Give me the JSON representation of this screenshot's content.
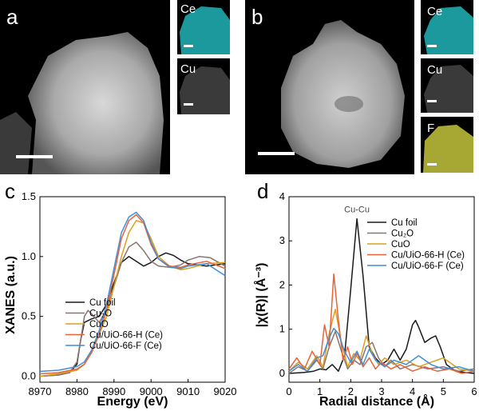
{
  "panels": {
    "a": {
      "letter": "a",
      "maps": [
        "Ce",
        "Cu"
      ]
    },
    "b": {
      "letter": "b",
      "maps": [
        "Ce",
        "Cu",
        "F"
      ]
    },
    "c": {
      "letter": "c"
    },
    "d": {
      "letter": "d"
    }
  },
  "colors": {
    "cu_foil": "#1a1a1a",
    "cu2o": "#8a7470",
    "cuo": "#d9a020",
    "uio_h": "#e8623a",
    "uio_f": "#3f8fd8",
    "ce_map": "#21b4b8",
    "f_map": "#c4c43c"
  },
  "chart_data": [
    {
      "type": "line",
      "panel": "c",
      "xlabel": "Energy (eV)",
      "ylabel": "XANES (a.u.)",
      "xlim": [
        8970,
        9020
      ],
      "ylim": [
        -0.05,
        1.5
      ],
      "xticks": [
        "8970",
        "8980",
        "8990",
        "9000",
        "9010",
        "9020"
      ],
      "yticks": [
        "0.0",
        "0.5",
        "1.0",
        "1.5"
      ],
      "legend": [
        "Cu foil",
        "Cu₂O",
        "CuO",
        "Cu/UiO-66-H (Ce)",
        "Cu/UiO-66-F (Ce)"
      ],
      "series": [
        {
          "name": "Cu foil",
          "color": "#1a1a1a",
          "x": [
            8970,
            8975,
            8978,
            8980,
            8981,
            8982,
            8984,
            8986,
            8988,
            8990,
            8992,
            8994,
            8996,
            8998,
            9000,
            9002,
            9004,
            9006,
            9008,
            9010,
            9015,
            9020
          ],
          "y": [
            0.0,
            0.01,
            0.03,
            0.1,
            0.3,
            0.45,
            0.48,
            0.5,
            0.6,
            0.78,
            0.95,
            1.0,
            0.96,
            0.92,
            0.95,
            1.0,
            1.03,
            1.01,
            0.97,
            0.94,
            0.92,
            0.94
          ]
        },
        {
          "name": "Cu₂O",
          "color": "#8a7470",
          "x": [
            8970,
            8975,
            8978,
            8980,
            8981,
            8982,
            8983,
            8984,
            8986,
            8988,
            8990,
            8992,
            8994,
            8996,
            8998,
            9000,
            9002,
            9005,
            9008,
            9010,
            9013,
            9016,
            9020
          ],
          "y": [
            0.0,
            0.01,
            0.03,
            0.12,
            0.3,
            0.5,
            0.55,
            0.52,
            0.45,
            0.55,
            0.75,
            0.95,
            1.08,
            1.12,
            1.05,
            0.96,
            0.92,
            0.91,
            0.93,
            0.97,
            1.0,
            0.99,
            0.92
          ]
        },
        {
          "name": "CuO",
          "color": "#d9a020",
          "x": [
            8970,
            8975,
            8980,
            8982,
            8984,
            8985,
            8986,
            8988,
            8990,
            8992,
            8994,
            8996,
            8998,
            9000,
            9002,
            9005,
            9008,
            9010,
            9015,
            9020
          ],
          "y": [
            0.0,
            0.02,
            0.05,
            0.1,
            0.22,
            0.3,
            0.35,
            0.5,
            0.75,
            1.0,
            1.2,
            1.3,
            1.28,
            1.15,
            1.0,
            0.92,
            0.89,
            0.9,
            0.94,
            0.95
          ]
        },
        {
          "name": "Cu/UiO-66-H (Ce)",
          "color": "#e8623a",
          "x": [
            8970,
            8975,
            8980,
            8982,
            8984,
            8986,
            8988,
            8990,
            8992,
            8994,
            8996,
            8998,
            9000,
            9002,
            9005,
            9008,
            9010,
            9015,
            9020
          ],
          "y": [
            0.02,
            0.03,
            0.06,
            0.1,
            0.2,
            0.35,
            0.55,
            0.85,
            1.15,
            1.3,
            1.35,
            1.28,
            1.1,
            0.98,
            0.92,
            0.91,
            0.93,
            0.96,
            0.9
          ]
        },
        {
          "name": "Cu/UiO-66-F (Ce)",
          "color": "#3f8fd8",
          "x": [
            8970,
            8975,
            8980,
            8982,
            8984,
            8986,
            8988,
            8990,
            8992,
            8994,
            8996,
            8998,
            9000,
            9002,
            9005,
            9008,
            9010,
            9015,
            9020
          ],
          "y": [
            0.04,
            0.05,
            0.08,
            0.12,
            0.22,
            0.38,
            0.6,
            0.9,
            1.2,
            1.33,
            1.37,
            1.3,
            1.12,
            0.98,
            0.91,
            0.9,
            0.92,
            0.94,
            0.84
          ]
        }
      ]
    },
    {
      "type": "line",
      "panel": "d",
      "xlabel": "Radial distance (Å)",
      "ylabel": "|χ(R)| (Å⁻³)",
      "xlim": [
        0,
        6
      ],
      "ylim": [
        -0.2,
        4
      ],
      "xticks": [
        "0",
        "1",
        "2",
        "3",
        "4",
        "5",
        "6"
      ],
      "yticks": [
        "0",
        "1",
        "2",
        "3",
        "4"
      ],
      "annotation": "Cu-Cu",
      "legend": [
        "Cu foil",
        "Cu₂O",
        "CuO",
        "Cu/UiO-66-H (Ce)",
        "Cu/UiO-66-F (Ce)"
      ],
      "series": [
        {
          "name": "Cu foil",
          "color": "#1a1a1a",
          "x": [
            0,
            0.5,
            0.8,
            1.0,
            1.2,
            1.4,
            1.6,
            1.8,
            2.0,
            2.2,
            2.4,
            2.6,
            2.8,
            3.0,
            3.2,
            3.4,
            3.6,
            3.8,
            4.0,
            4.1,
            4.2,
            4.4,
            4.6,
            4.75,
            4.9,
            5.1,
            5.4,
            5.7,
            6.0
          ],
          "y": [
            0.0,
            0.02,
            0.05,
            0.1,
            0.08,
            0.2,
            0.05,
            0.4,
            1.9,
            3.5,
            2.2,
            0.6,
            0.35,
            0.2,
            0.3,
            0.55,
            0.3,
            0.55,
            1.1,
            1.2,
            1.05,
            0.7,
            0.8,
            0.85,
            0.6,
            0.2,
            0.05,
            0.02,
            0.0
          ]
        },
        {
          "name": "Cu₂O",
          "color": "#8a7470",
          "x": [
            0,
            0.3,
            0.6,
            0.9,
            1.1,
            1.3,
            1.5,
            1.7,
            1.9,
            2.1,
            2.3,
            2.5,
            2.7,
            2.9,
            3.1,
            3.3,
            3.6,
            4.0,
            4.5,
            5.0,
            5.5,
            6.0
          ],
          "y": [
            0.0,
            0.15,
            0.05,
            0.3,
            0.1,
            0.6,
            0.95,
            0.5,
            0.1,
            0.3,
            0.2,
            0.6,
            0.7,
            0.35,
            0.15,
            0.3,
            0.1,
            0.2,
            0.1,
            0.15,
            0.05,
            0.1
          ]
        },
        {
          "name": "CuO",
          "color": "#d9a020",
          "x": [
            0,
            0.3,
            0.6,
            0.9,
            1.1,
            1.3,
            1.5,
            1.7,
            1.9,
            2.1,
            2.3,
            2.5,
            2.7,
            2.9,
            3.1,
            3.4,
            3.8,
            4.2,
            4.6,
            5.0,
            5.5,
            6.0
          ],
          "y": [
            0.05,
            0.25,
            0.1,
            0.4,
            0.15,
            0.9,
            1.45,
            0.7,
            0.15,
            0.45,
            0.3,
            0.85,
            0.45,
            0.2,
            0.35,
            0.2,
            0.3,
            0.15,
            0.25,
            0.35,
            0.1,
            0.05
          ]
        },
        {
          "name": "Cu/UiO-66-H (Ce)",
          "color": "#e8623a",
          "x": [
            0,
            0.25,
            0.5,
            0.75,
            1.0,
            1.15,
            1.3,
            1.45,
            1.6,
            1.75,
            1.9,
            2.05,
            2.2,
            2.4,
            2.6,
            2.8,
            3.0,
            3.3,
            3.6,
            4.0,
            4.4,
            4.8,
            5.2,
            5.6,
            6.0
          ],
          "y": [
            0.1,
            0.35,
            0.1,
            0.5,
            0.2,
            1.1,
            0.6,
            2.25,
            1.2,
            0.3,
            0.6,
            0.2,
            0.45,
            0.15,
            0.35,
            0.1,
            0.25,
            0.1,
            0.2,
            0.05,
            0.15,
            0.05,
            0.1,
            0.0,
            0.05
          ]
        },
        {
          "name": "Cu/UiO-66-F (Ce)",
          "color": "#3f8fd8",
          "x": [
            0,
            0.3,
            0.6,
            0.9,
            1.1,
            1.3,
            1.45,
            1.6,
            1.8,
            2.0,
            2.2,
            2.4,
            2.6,
            2.8,
            3.1,
            3.4,
            3.8,
            4.2,
            4.6,
            5.0,
            5.5,
            6.0
          ],
          "y": [
            0.05,
            0.2,
            0.05,
            0.35,
            0.4,
            0.8,
            1.02,
            0.9,
            0.5,
            0.25,
            0.5,
            0.2,
            0.55,
            0.3,
            0.15,
            0.3,
            0.2,
            0.4,
            0.2,
            0.1,
            0.15,
            0.05
          ]
        }
      ]
    }
  ]
}
